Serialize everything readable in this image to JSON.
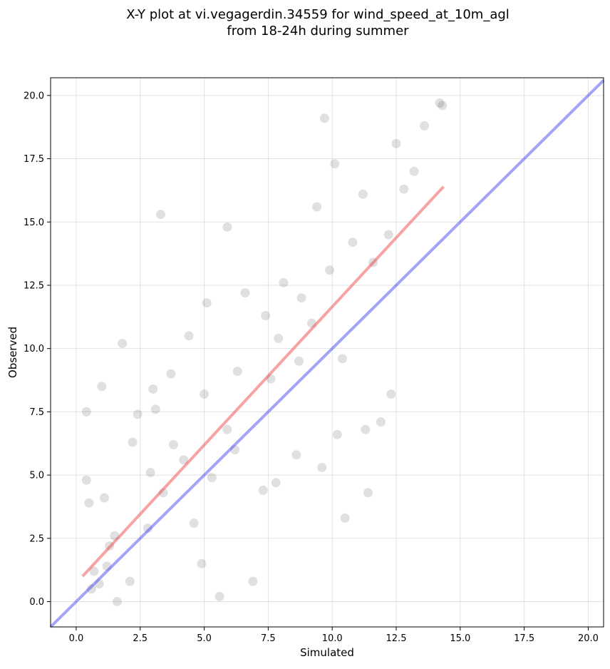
{
  "chart_data": {
    "type": "scatter",
    "title_lines": [
      "X-Y plot at vi.vegagerdin.34559 for wind_speed_at_10m_agl",
      "from 18-24h during summer"
    ],
    "xlabel": "Simulated",
    "ylabel": "Observed",
    "xlim": [
      -1.0,
      20.6
    ],
    "ylim": [
      -1.0,
      20.7
    ],
    "xticks": [
      0.0,
      2.5,
      5.0,
      7.5,
      10.0,
      12.5,
      15.0,
      17.5,
      20.0
    ],
    "yticks": [
      0.0,
      2.5,
      5.0,
      7.5,
      10.0,
      12.5,
      15.0,
      17.5,
      20.0
    ],
    "xtick_labels": [
      "0.0",
      "2.5",
      "5.0",
      "7.5",
      "10.0",
      "12.5",
      "15.0",
      "17.5",
      "20.0"
    ],
    "ytick_labels": [
      "0.0",
      "2.5",
      "5.0",
      "7.5",
      "10.0",
      "12.5",
      "15.0",
      "17.5",
      "20.0"
    ],
    "grid": true,
    "colors": {
      "points": "#000000",
      "fit_line": "#ee3333",
      "identity_line": "#3333ee",
      "grid": "#b0b0b0"
    },
    "fit_line": {
      "x": [
        0.25,
        14.35
      ],
      "y": [
        1.0,
        16.4
      ]
    },
    "identity_line": {
      "x": [
        -1.0,
        20.6
      ],
      "y": [
        -1.0,
        20.6
      ]
    },
    "points": {
      "x": [
        0.6,
        0.7,
        0.9,
        1.2,
        1.6,
        2.1,
        0.4,
        1.5,
        2.2,
        2.9,
        3.4,
        3.1,
        3.8,
        4.2,
        4.6,
        5.0,
        5.3,
        5.9,
        6.3,
        7.3,
        7.9,
        7.6,
        8.8,
        9.2,
        9.9,
        10.4,
        10.8,
        9.4,
        11.2,
        11.6,
        12.2,
        12.8,
        13.2,
        14.2,
        14.3,
        13.6,
        12.5,
        11.3,
        10.2,
        9.6,
        8.7,
        8.1,
        7.4,
        6.6,
        5.9,
        5.1,
        4.4,
        3.7,
        3.0,
        2.4,
        1.8,
        1.1,
        0.5,
        1.3,
        2.8,
        4.9,
        6.2,
        7.8,
        10.5,
        11.4,
        12.3,
        3.3,
        0.4,
        1.0,
        5.6,
        6.9,
        8.6,
        9.7,
        10.1,
        11.9
      ],
      "y": [
        0.5,
        1.2,
        0.7,
        1.4,
        0.0,
        0.8,
        4.8,
        2.6,
        6.3,
        5.1,
        4.3,
        7.6,
        6.2,
        5.6,
        3.1,
        8.2,
        4.9,
        6.8,
        9.1,
        4.4,
        10.4,
        8.8,
        12.0,
        11.0,
        13.1,
        9.6,
        14.2,
        15.6,
        16.1,
        13.4,
        14.5,
        16.3,
        17.0,
        19.7,
        19.6,
        18.8,
        18.1,
        6.8,
        6.6,
        5.3,
        9.5,
        12.6,
        11.3,
        12.2,
        14.8,
        11.8,
        10.5,
        9.0,
        8.4,
        7.4,
        10.2,
        4.1,
        3.9,
        2.2,
        2.9,
        1.5,
        6.0,
        4.7,
        3.3,
        4.3,
        8.2,
        15.3,
        7.5,
        8.5,
        0.2,
        0.8,
        5.8,
        19.1,
        17.3,
        7.1
      ]
    }
  }
}
